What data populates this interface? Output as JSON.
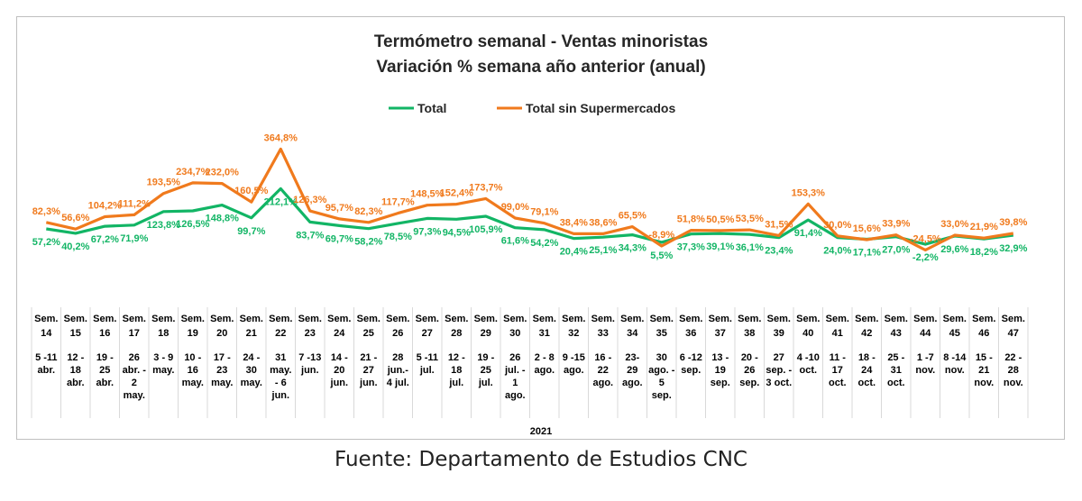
{
  "chart_data": {
    "type": "line",
    "title": "Termómetro semanal - Ventas minoristas",
    "subtitle": "Variación % semana año anterior (anual)",
    "legend_position": "top-center",
    "grid": false,
    "year_label": "2021",
    "categories": [
      {
        "week": [
          "Sem.",
          "14"
        ],
        "range": [
          "5 -11",
          "abr."
        ]
      },
      {
        "week": [
          "Sem.",
          "15"
        ],
        "range": [
          "12 -",
          "18",
          "abr."
        ]
      },
      {
        "week": [
          "Sem.",
          "16"
        ],
        "range": [
          "19 -",
          "25",
          "abr."
        ]
      },
      {
        "week": [
          "Sem.",
          "17"
        ],
        "range": [
          "26",
          "abr. -",
          "2",
          "may."
        ]
      },
      {
        "week": [
          "Sem.",
          "18"
        ],
        "range": [
          "3 - 9",
          "may."
        ]
      },
      {
        "week": [
          "Sem.",
          "19"
        ],
        "range": [
          "10 -",
          "16",
          "may."
        ]
      },
      {
        "week": [
          "Sem.",
          "20"
        ],
        "range": [
          "17 -",
          "23",
          "may."
        ]
      },
      {
        "week": [
          "Sem.",
          "21"
        ],
        "range": [
          "24 -",
          "30",
          "may."
        ]
      },
      {
        "week": [
          "Sem.",
          "22"
        ],
        "range": [
          "31",
          "may.",
          "- 6",
          "jun."
        ]
      },
      {
        "week": [
          "Sem.",
          "23"
        ],
        "range": [
          "7 -13",
          "jun."
        ]
      },
      {
        "week": [
          "Sem.",
          "24"
        ],
        "range": [
          "14 -",
          "20",
          "jun."
        ]
      },
      {
        "week": [
          "Sem.",
          "25"
        ],
        "range": [
          "21 -",
          "27",
          "jun."
        ]
      },
      {
        "week": [
          "Sem.",
          "26"
        ],
        "range": [
          "28",
          "jun.-",
          "4 jul."
        ]
      },
      {
        "week": [
          "Sem.",
          "27"
        ],
        "range": [
          "5 -11",
          "jul."
        ]
      },
      {
        "week": [
          "Sem.",
          "28"
        ],
        "range": [
          "12 -",
          "18",
          "jul."
        ]
      },
      {
        "week": [
          "Sem.",
          "29"
        ],
        "range": [
          "19 -",
          "25",
          "jul."
        ]
      },
      {
        "week": [
          "Sem.",
          "30"
        ],
        "range": [
          "26",
          "jul. -",
          "1",
          "ago."
        ]
      },
      {
        "week": [
          "Sem.",
          "31"
        ],
        "range": [
          "2 - 8",
          "ago."
        ]
      },
      {
        "week": [
          "Sem.",
          "32"
        ],
        "range": [
          "9 -15",
          "ago."
        ]
      },
      {
        "week": [
          "Sem.",
          "33"
        ],
        "range": [
          "16 -",
          "22",
          "ago."
        ]
      },
      {
        "week": [
          "Sem.",
          "34"
        ],
        "range": [
          "23-",
          "29",
          "ago."
        ]
      },
      {
        "week": [
          "Sem.",
          "35"
        ],
        "range": [
          "30",
          "ago. -",
          "5",
          "sep."
        ]
      },
      {
        "week": [
          "Sem.",
          "36"
        ],
        "range": [
          "6 -12",
          "sep."
        ]
      },
      {
        "week": [
          "Sem.",
          "37"
        ],
        "range": [
          "13 -",
          "19",
          "sep."
        ]
      },
      {
        "week": [
          "Sem.",
          "38"
        ],
        "range": [
          "20 -",
          "26",
          "sep."
        ]
      },
      {
        "week": [
          "Sem.",
          "39"
        ],
        "range": [
          "27",
          "sep. -",
          "3 oct."
        ]
      },
      {
        "week": [
          "Sem.",
          "40"
        ],
        "range": [
          "4 -10",
          "oct."
        ]
      },
      {
        "week": [
          "Sem.",
          "41"
        ],
        "range": [
          "11 -",
          "17",
          "oct."
        ]
      },
      {
        "week": [
          "Sem.",
          "42"
        ],
        "range": [
          "18 -",
          "24",
          "oct."
        ]
      },
      {
        "week": [
          "Sem.",
          "43"
        ],
        "range": [
          "25 -",
          "31",
          "oct."
        ]
      },
      {
        "week": [
          "Sem.",
          "44"
        ],
        "range": [
          "1 -7",
          "nov."
        ]
      },
      {
        "week": [
          "Sem.",
          "45"
        ],
        "range": [
          "8 -14",
          "nov."
        ]
      },
      {
        "week": [
          "Sem.",
          "46"
        ],
        "range": [
          "15 -",
          "21",
          "nov."
        ]
      },
      {
        "week": [
          "Sem.",
          "47"
        ],
        "range": [
          "22 -",
          "28",
          "nov."
        ]
      }
    ],
    "ylim": [
      -40,
      380
    ],
    "series": [
      {
        "name": "Total",
        "color": "#12b565",
        "values": [
          57.2,
          40.2,
          67.2,
          71.9,
          123.8,
          126.5,
          148.8,
          99.7,
          212.1,
          83.7,
          69.7,
          58.2,
          78.5,
          97.3,
          94.5,
          105.9,
          61.6,
          54.2,
          20.4,
          25.1,
          34.3,
          5.5,
          37.3,
          39.1,
          36.1,
          23.4,
          91.4,
          24.0,
          17.1,
          27.0,
          -2.2,
          29.6,
          18.2,
          32.9
        ],
        "labels": [
          "57,2%",
          "40,2%",
          "67,2%",
          "71,9%",
          "123,8%",
          "126,5%",
          "148,8%",
          "99,7%",
          "212,1%",
          "83,7%",
          "69,7%",
          "58,2%",
          "78,5%",
          "97,3%",
          "94,5%",
          "105,9%",
          "61,6%",
          "54,2%",
          "20,4%",
          "25,1%",
          "34,3%",
          "5,5%",
          "37,3%",
          "39,1%",
          "36,1%",
          "23,4%",
          "91,4%",
          "24,0%",
          "17,1%",
          "27,0%",
          "-2,2%",
          "29,6%",
          "18,2%",
          "32,9%"
        ]
      },
      {
        "name": "Total sin Supermercados",
        "color": "#f07a1d",
        "values": [
          82.3,
          56.6,
          104.2,
          111.2,
          193.5,
          234.7,
          232.0,
          160.5,
          364.8,
          126.3,
          95.7,
          82.3,
          117.7,
          148.5,
          152.4,
          173.7,
          99.0,
          79.1,
          38.4,
          38.6,
          65.5,
          -8.9,
          51.8,
          50.5,
          53.5,
          31.5,
          153.3,
          30.0,
          15.6,
          33.9,
          -24.5,
          33.0,
          21.9,
          39.8
        ],
        "labels": [
          "82,3%",
          "56,6%",
          "104,2%",
          "111,2%",
          "193,5%",
          "234,7%",
          "232,0%",
          "160,5%",
          "364,8%",
          "126,3%",
          "95,7%",
          "82,3%",
          "117,7%",
          "148,5%",
          "152,4%",
          "173,7%",
          "99,0%",
          "79,1%",
          "38,4%",
          "38,6%",
          "65,5%",
          "-8,9%",
          "51,8%",
          "50,5%",
          "53,5%",
          "31,5%",
          "153,3%",
          "30,0%",
          "15,6%",
          "33,9%",
          "-24,5%",
          "33,0%",
          "21,9%",
          "39,8%"
        ]
      }
    ]
  },
  "source": "Fuente: Departamento de Estudios CNC"
}
